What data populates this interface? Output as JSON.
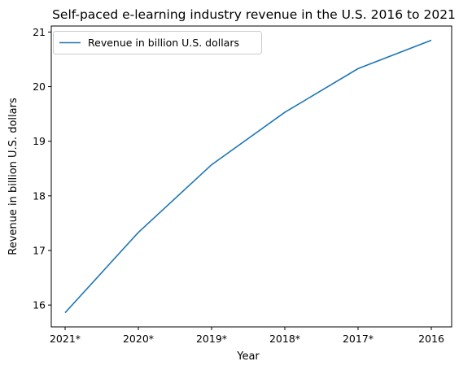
{
  "chart_data": {
    "type": "line",
    "title": "Self-paced e-learning industry revenue in the U.S. 2016 to 2021",
    "xlabel": "Year",
    "ylabel": "Revenue in billion U.S. dollars",
    "categories": [
      "2021*",
      "2020*",
      "2019*",
      "2018*",
      "2017*",
      "2016"
    ],
    "series": [
      {
        "name": "Revenue in billion U.S. dollars",
        "values": [
          15.86,
          17.33,
          18.57,
          19.53,
          20.33,
          20.85
        ],
        "color": "#1f77b4"
      }
    ],
    "ylim": [
      15.6,
      21.11
    ],
    "yticks": [
      16,
      17,
      18,
      19,
      20,
      21
    ],
    "grid": false,
    "legend": "top-left"
  }
}
